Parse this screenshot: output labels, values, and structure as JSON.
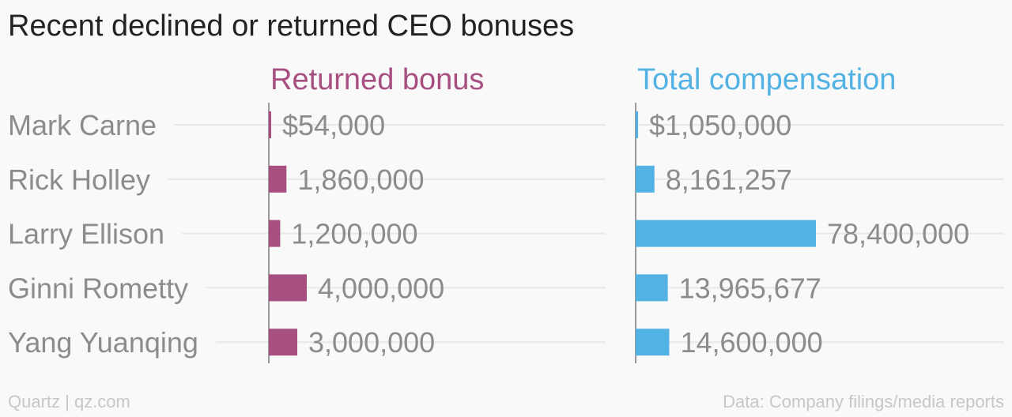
{
  "chart_data": {
    "type": "bar",
    "title": "Recent declined or returned CEO bonuses",
    "categories": [
      "Mark Carne",
      "Rick Holley",
      "Larry Ellison",
      "Ginni Rometty",
      "Yang Yuanqing"
    ],
    "series": [
      {
        "name": "Returned bonus",
        "values": [
          54000,
          1860000,
          1200000,
          4000000,
          3000000
        ],
        "labels": [
          "$54,000",
          "1,860,000",
          "1,200,000",
          "4,000,000",
          "3,000,000"
        ],
        "color": "#a84f82"
      },
      {
        "name": "Total compensation",
        "values": [
          1050000,
          8161257,
          78400000,
          13965677,
          14600000
        ],
        "labels": [
          "$1,050,000",
          "8,161,257",
          "78,400,000",
          "13,965,677",
          "14,600,000"
        ],
        "color": "#52b2e3"
      }
    ],
    "orientation": "horizontal",
    "grid": true
  },
  "footer": {
    "source_left": "Quartz | qz.com",
    "source_right": "Data: Company filings/media reports"
  },
  "colors": {
    "title": "#222222",
    "category_label": "#8c8c8c",
    "value_label": "#8c8c8c",
    "gridline": "#e8e8e8",
    "axis": "#9a9a9a",
    "footer": "#c7c7c7",
    "background": "#f9f9f9"
  }
}
